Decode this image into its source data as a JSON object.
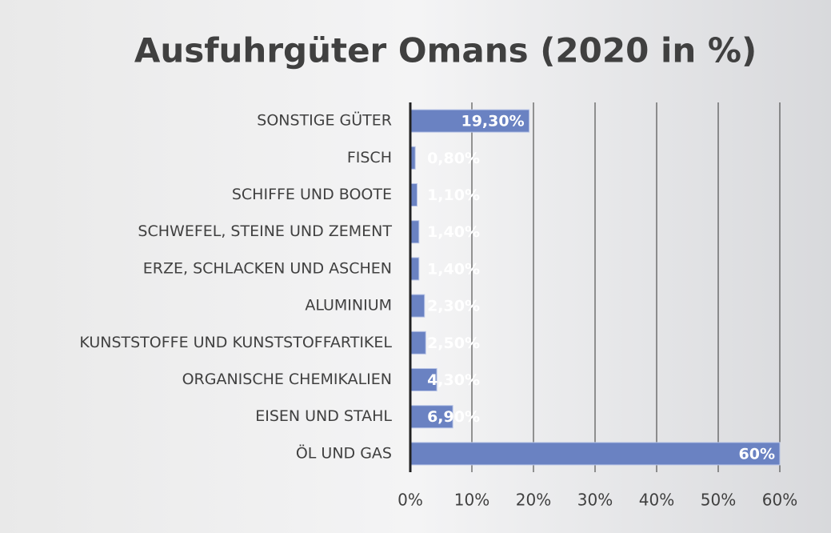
{
  "chart_data": {
    "type": "bar",
    "orientation": "horizontal",
    "title": "Ausfuhrgüter Omans (2020 in %)",
    "categories": [
      "SONSTIGE GÜTER",
      "FISCH",
      "SCHIFFE UND BOOTE",
      "SCHWEFEL, STEINE UND ZEMENT",
      "ERZE, SCHLACKEN UND ASCHEN",
      "ALUMINIUM",
      "KUNSTSTOFFE UND KUNSTSTOFFARTIKEL",
      "ORGANISCHE CHEMIKALIEN",
      "EISEN UND STAHL",
      "ÖL UND GAS"
    ],
    "values": [
      19.3,
      0.8,
      1.1,
      1.4,
      1.4,
      2.3,
      2.5,
      4.3,
      6.9,
      60
    ],
    "value_labels": [
      "19,30%",
      "0,80%",
      "1,10%",
      "1,40%",
      "1,40%",
      "2,30%",
      "2,50%",
      "4,30%",
      "6,90%",
      "60%"
    ],
    "color": "#6a82c2",
    "xlim": [
      0,
      60
    ],
    "xticks": [
      {
        "value": 0,
        "label": "0%"
      },
      {
        "value": 10,
        "label": "10%"
      },
      {
        "value": 20,
        "label": "20%"
      },
      {
        "value": 30,
        "label": "30%"
      },
      {
        "value": 40,
        "label": "40%"
      },
      {
        "value": 50,
        "label": "50%"
      },
      {
        "value": 60,
        "label": "60%"
      }
    ],
    "grid": true
  }
}
